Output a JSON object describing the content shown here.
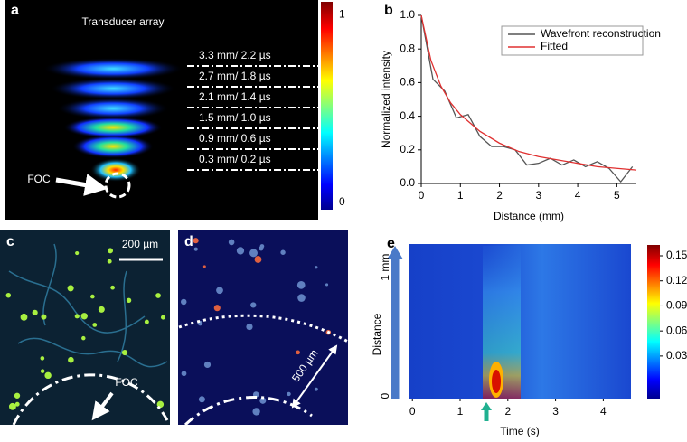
{
  "panels": {
    "a": {
      "label": "a",
      "title": "Transducer array",
      "annotations": [
        "3.3 mm/ 2.2 µs",
        "2.7 mm/ 1.8 µs",
        "2.1 mm/ 1.4 µs",
        "1.5 mm/ 1.0 µs",
        "0.9 mm/ 0.6 µs",
        "0.3 mm/ 0.2 µs"
      ],
      "focus_label": "FOC",
      "colorbar": {
        "lim": [
          -0.04,
          1.07
        ],
        "ticks": [
          0,
          1
        ]
      }
    },
    "c": {
      "label": "c",
      "scale_bar": "200 µm",
      "focus_label": "FOC"
    },
    "d": {
      "label": "d",
      "scale_bar": "500 µm"
    }
  },
  "chart_data": [
    {
      "type": "line",
      "panel_label": "b",
      "xlabel": "Distance (mm)",
      "ylabel": "Normalized intensity",
      "xlim": [
        0,
        5.5
      ],
      "ylim": [
        0,
        1
      ],
      "xticks": [
        0,
        1,
        2,
        3,
        4,
        5
      ],
      "yticks": [
        {
          "value": 0,
          "label": "0.0"
        },
        0.2,
        0.4,
        0.6,
        0.8,
        {
          "value": 1,
          "label": "1.0"
        }
      ],
      "series": [
        {
          "name": "Wavefront reconstruction",
          "color": "#555555",
          "x": [
            0,
            0.3,
            0.6,
            0.9,
            1.2,
            1.5,
            1.8,
            2.1,
            2.4,
            2.7,
            3.0,
            3.3,
            3.6,
            3.9,
            4.2,
            4.5,
            4.8,
            5.1,
            5.4
          ],
          "values": [
            1.0,
            0.62,
            0.55,
            0.39,
            0.41,
            0.28,
            0.22,
            0.22,
            0.2,
            0.11,
            0.12,
            0.15,
            0.11,
            0.14,
            0.1,
            0.13,
            0.09,
            0.01,
            0.1
          ]
        },
        {
          "name": "Fitted",
          "color": "#e03030",
          "x": [
            0,
            0.25,
            0.5,
            0.75,
            1,
            1.5,
            2,
            2.5,
            3,
            3.5,
            4,
            4.5,
            5,
            5.5
          ],
          "values": [
            1.0,
            0.73,
            0.58,
            0.48,
            0.41,
            0.31,
            0.24,
            0.19,
            0.16,
            0.14,
            0.12,
            0.1,
            0.09,
            0.08
          ]
        }
      ]
    },
    {
      "type": "heatmap",
      "panel_label": "e",
      "xlabel": "Time (s)",
      "ylabel": "Distance",
      "xlim": [
        -0.08,
        4.58
      ],
      "ylim": [
        -0.02,
        1.18
      ],
      "xticks": [
        0,
        1,
        2,
        3,
        4
      ],
      "yticks": [
        0,
        {
          "value": 1,
          "label": "1 mm"
        }
      ],
      "colorbar": {
        "lim": [
          -0.021,
          0.163
        ],
        "ticks": [
          0.03,
          0.06,
          0.09,
          0.12,
          0.15
        ]
      }
    }
  ]
}
